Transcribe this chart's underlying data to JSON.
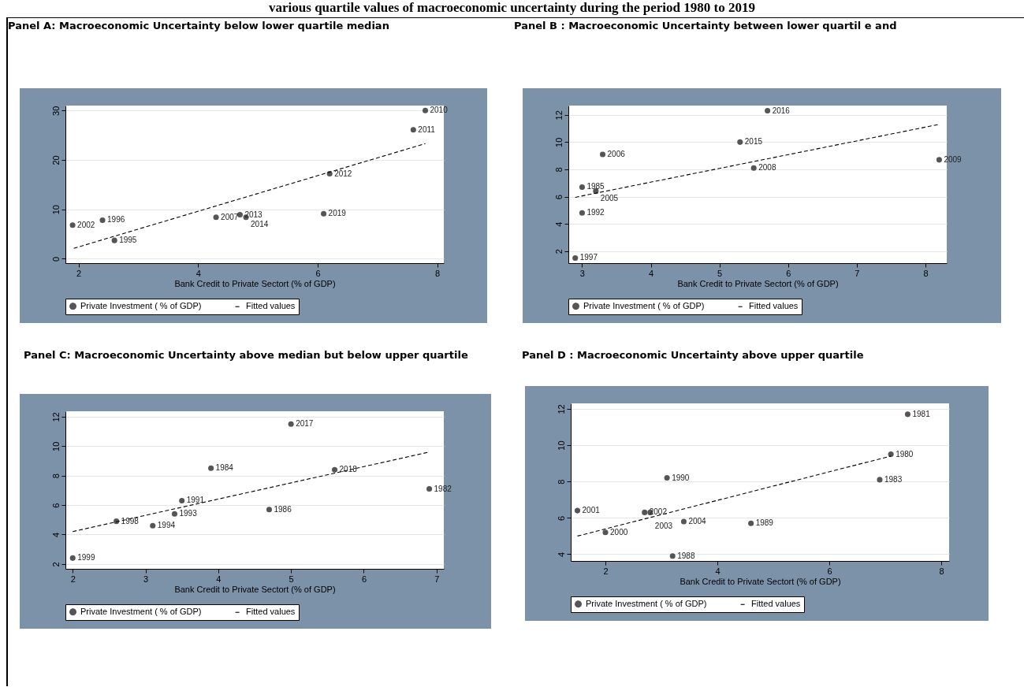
{
  "chart_data": [
    {
      "type": "scatter",
      "title": "Panel A: Macroeconomic Uncertainty below lower quartile median",
      "xlabel": "Bank Credit to Private Sectort (% of GDP)",
      "xlim": [
        1.78,
        8.11
      ],
      "xticks": [
        2,
        4,
        6,
        8
      ],
      "ylim": [
        -0.9,
        31
      ],
      "yticks": [
        0,
        10,
        20,
        30
      ],
      "grid": "y",
      "legend": "bottom",
      "series": [
        {
          "name": "Private Investment ( % of GDP)",
          "color": "#555555",
          "x": [
            1.9,
            2.4,
            2.6,
            4.3,
            4.7,
            4.8,
            6.2,
            6.1,
            7.6,
            7.8
          ],
          "values": [
            6.8,
            7.8,
            3.7,
            8.4,
            8.9,
            8.4,
            17.2,
            9.1,
            26.1,
            30
          ],
          "marker": "circle"
        },
        {
          "name": "Fitted values",
          "type": "line",
          "line_style": "dashed",
          "color": "#000000",
          "x": [
            1.92,
            7.8
          ],
          "values": [
            2.1,
            23.3
          ]
        }
      ],
      "annotations": [
        "various quartile values of macroeconomic uncertainty during the period 1980 to 2019",
        {
          "text": "2002",
          "x": 1.9,
          "y": 6.8
        },
        {
          "text": "1996",
          "x": 2.4,
          "y": 7.8
        },
        {
          "text": "1995",
          "x": 2.6,
          "y": 3.7
        },
        {
          "text": "2007",
          "x": 4.3,
          "y": 8.4
        },
        {
          "text": "2013",
          "x": 4.7,
          "y": 8.9
        },
        {
          "text": "2014",
          "x": 4.8,
          "y": 8.4
        },
        {
          "text": "2012",
          "x": 6.2,
          "y": 17.2
        },
        {
          "text": "2019",
          "x": 6.1,
          "y": 9.1
        },
        {
          "text": "2011",
          "x": 7.6,
          "y": 26.1
        },
        {
          "text": "2010",
          "x": 7.8,
          "y": 30
        }
      ]
    },
    {
      "type": "scatter",
      "title": "Panel B : Macroeconomic Uncertainty between lower quartil e and",
      "xlabel": "Bank Credit to Private Sectort (% of GDP)",
      "xlim": [
        2.8,
        8.31
      ],
      "xticks": [
        3,
        4,
        5,
        6,
        7,
        8
      ],
      "ylim": [
        1.12,
        12.68
      ],
      "yticks": [
        2,
        4,
        6,
        8,
        10,
        12
      ],
      "grid": "y",
      "legend": "bottom",
      "series": [
        {
          "name": "Private Investment ( % of GDP)",
          "color": "#555555",
          "x": [
            5.7,
            5.3,
            3.3,
            5.5,
            8.2,
            3.0,
            3.2,
            3.0,
            2.9
          ],
          "values": [
            12.3,
            10.0,
            9.1,
            8.1,
            8.7,
            6.7,
            6.4,
            4.8,
            1.5
          ],
          "marker": "circle"
        },
        {
          "name": "Fitted values",
          "type": "line",
          "line_style": "dashed",
          "color": "#000000",
          "x": [
            2.9,
            8.2
          ],
          "values": [
            5.95,
            11.3
          ]
        }
      ],
      "annotations": [
        {
          "text": "2016",
          "x": 5.7,
          "y": 12.3
        },
        {
          "text": "2015",
          "x": 5.3,
          "y": 10.0
        },
        {
          "text": "2006",
          "x": 3.3,
          "y": 9.1
        },
        {
          "text": "2008",
          "x": 5.5,
          "y": 8.1
        },
        {
          "text": "2009",
          "x": 8.2,
          "y": 8.7
        },
        {
          "text": "1985",
          "x": 3.0,
          "y": 6.7
        },
        {
          "text": "2005",
          "x": 3.2,
          "y": 6.4
        },
        {
          "text": "1992",
          "x": 3.0,
          "y": 4.8
        },
        {
          "text": "1997",
          "x": 2.9,
          "y": 1.5
        }
      ]
    },
    {
      "type": "scatter",
      "title": "Panel C: Macroeconomic Uncertainty above median but below upper quartile",
      "xlabel": "Bank Credit to Private Sectort (% of GDP)",
      "xlim": [
        1.9,
        7.1
      ],
      "xticks": [
        2,
        3,
        4,
        5,
        6,
        7
      ],
      "ylim": [
        1.67,
        12.37
      ],
      "yticks": [
        2,
        4,
        6,
        8,
        10,
        12
      ],
      "grid": "y",
      "legend": "bottom",
      "series": [
        {
          "name": "Private Investment ( % of GDP)",
          "color": "#555555",
          "x": [
            5.0,
            3.9,
            5.6,
            6.9,
            3.5,
            4.7,
            3.4,
            2.6,
            3.1,
            2.0
          ],
          "values": [
            11.5,
            8.5,
            8.4,
            7.1,
            6.3,
            5.7,
            5.4,
            4.9,
            4.6,
            2.4
          ],
          "marker": "circle"
        },
        {
          "name": "Fitted values",
          "type": "line",
          "line_style": "dashed",
          "color": "#000000",
          "x": [
            2.0,
            6.9
          ],
          "values": [
            4.2,
            9.6
          ]
        }
      ],
      "annotations": [
        {
          "text": "2017",
          "x": 5.0,
          "y": 11.5
        },
        {
          "text": "1984",
          "x": 3.9,
          "y": 8.5
        },
        {
          "text": "2018",
          "x": 5.6,
          "y": 8.4
        },
        {
          "text": "1982",
          "x": 6.9,
          "y": 7.1
        },
        {
          "text": "1991",
          "x": 3.5,
          "y": 6.3
        },
        {
          "text": "1986",
          "x": 4.7,
          "y": 5.7
        },
        {
          "text": "1993",
          "x": 3.4,
          "y": 5.4
        },
        {
          "text": "1998",
          "x": 2.6,
          "y": 4.9
        },
        {
          "text": "1994",
          "x": 3.1,
          "y": 4.6
        },
        {
          "text": "1999",
          "x": 2.0,
          "y": 2.4
        }
      ]
    },
    {
      "type": "scatter",
      "title": "Panel D : Macroeconomic Uncertainty above upper quartile",
      "xlabel": "Bank Credit to Private Sectort (% of GDP)",
      "xlim": [
        1.38,
        8.14
      ],
      "xticks": [
        2,
        4,
        6,
        8
      ],
      "ylim": [
        3.63,
        12.3
      ],
      "yticks": [
        4,
        6,
        8,
        10,
        12
      ],
      "grid": "y",
      "legend": "bottom",
      "series": [
        {
          "name": "Private Investment ( % of GDP)",
          "color": "#555555",
          "x": [
            7.4,
            7.1,
            3.1,
            6.9,
            1.5,
            2.7,
            2.8,
            3.4,
            4.6,
            2.0,
            3.2
          ],
          "values": [
            11.7,
            9.5,
            8.2,
            8.1,
            6.4,
            6.3,
            6.3,
            5.8,
            5.7,
            5.2,
            3.9
          ],
          "marker": "circle"
        },
        {
          "name": "Fitted values",
          "type": "line",
          "line_style": "dashed",
          "color": "#000000",
          "x": [
            1.5,
            7.1
          ],
          "values": [
            5.0,
            9.4
          ]
        }
      ],
      "annotations": [
        {
          "text": "1981",
          "x": 7.4,
          "y": 11.7
        },
        {
          "text": "1980",
          "x": 7.1,
          "y": 9.5
        },
        {
          "text": "1990",
          "x": 3.1,
          "y": 8.2
        },
        {
          "text": "1983",
          "x": 6.9,
          "y": 8.1
        },
        {
          "text": "2001",
          "x": 1.5,
          "y": 6.4
        },
        {
          "text": "2002",
          "x": 2.7,
          "y": 6.3
        },
        {
          "text": "2003",
          "x": 2.8,
          "y": 6.3
        },
        {
          "text": "2004",
          "x": 3.4,
          "y": 5.8
        },
        {
          "text": "1989",
          "x": 4.6,
          "y": 5.7
        },
        {
          "text": "2000",
          "x": 2.0,
          "y": 5.2
        },
        {
          "text": "1988",
          "x": 3.2,
          "y": 3.9
        }
      ]
    }
  ]
}
